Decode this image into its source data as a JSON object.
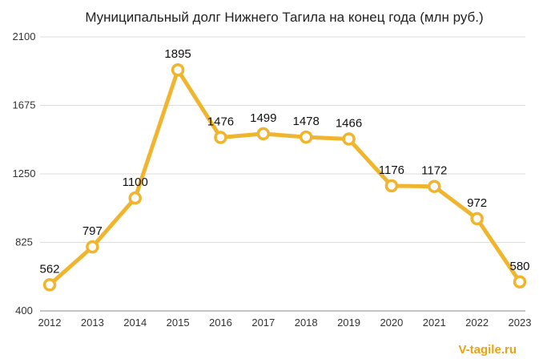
{
  "chart_data": {
    "type": "line",
    "title": "Муниципальный долг Нижнего Тагила на конец года (млн руб.)",
    "xlabel": "",
    "ylabel": "",
    "x": [
      "2012",
      "2013",
      "2014",
      "2015",
      "2016",
      "2017",
      "2018",
      "2019",
      "2020",
      "2021",
      "2022",
      "2023"
    ],
    "series": [
      {
        "values": [
          562,
          797,
          1100,
          1895,
          1476,
          1499,
          1478,
          1466,
          1176,
          1172,
          972,
          580
        ]
      }
    ],
    "ylim": [
      400,
      2100
    ],
    "yticks": [
      400,
      825,
      1250,
      1675,
      2100
    ],
    "grid": true,
    "legend": "none",
    "line_color": "#f0b52e",
    "marker_fill": "#ffffff"
  },
  "watermark": "V-tagile.ru"
}
